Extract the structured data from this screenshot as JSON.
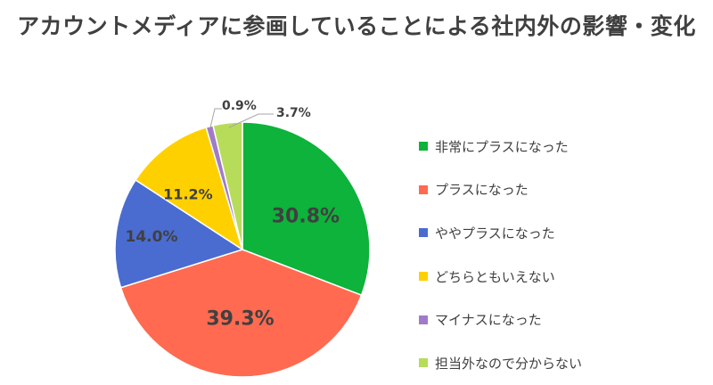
{
  "chart_data": {
    "type": "pie",
    "title": "アカウントメディアに参画していることによる社内外の影響・変化",
    "legend_position": "right",
    "series": [
      {
        "name": "非常にプラスになった",
        "value": 30.8,
        "label": "30.8%",
        "color": "#0DB33A"
      },
      {
        "name": "プラスになった",
        "value": 39.3,
        "label": "39.3%",
        "color": "#FF6A50"
      },
      {
        "name": "ややプラスになった",
        "value": 14.0,
        "label": "14.0%",
        "color": "#4A6CD0"
      },
      {
        "name": "どちらともいえない",
        "value": 11.2,
        "label": "11.2%",
        "color": "#FFD000"
      },
      {
        "name": "マイナスになった",
        "value": 0.9,
        "label": "0.9%",
        "color": "#A07CC8"
      },
      {
        "name": "担当外なので分からない",
        "value": 3.7,
        "label": "3.7%",
        "color": "#B7DC5A"
      }
    ]
  }
}
